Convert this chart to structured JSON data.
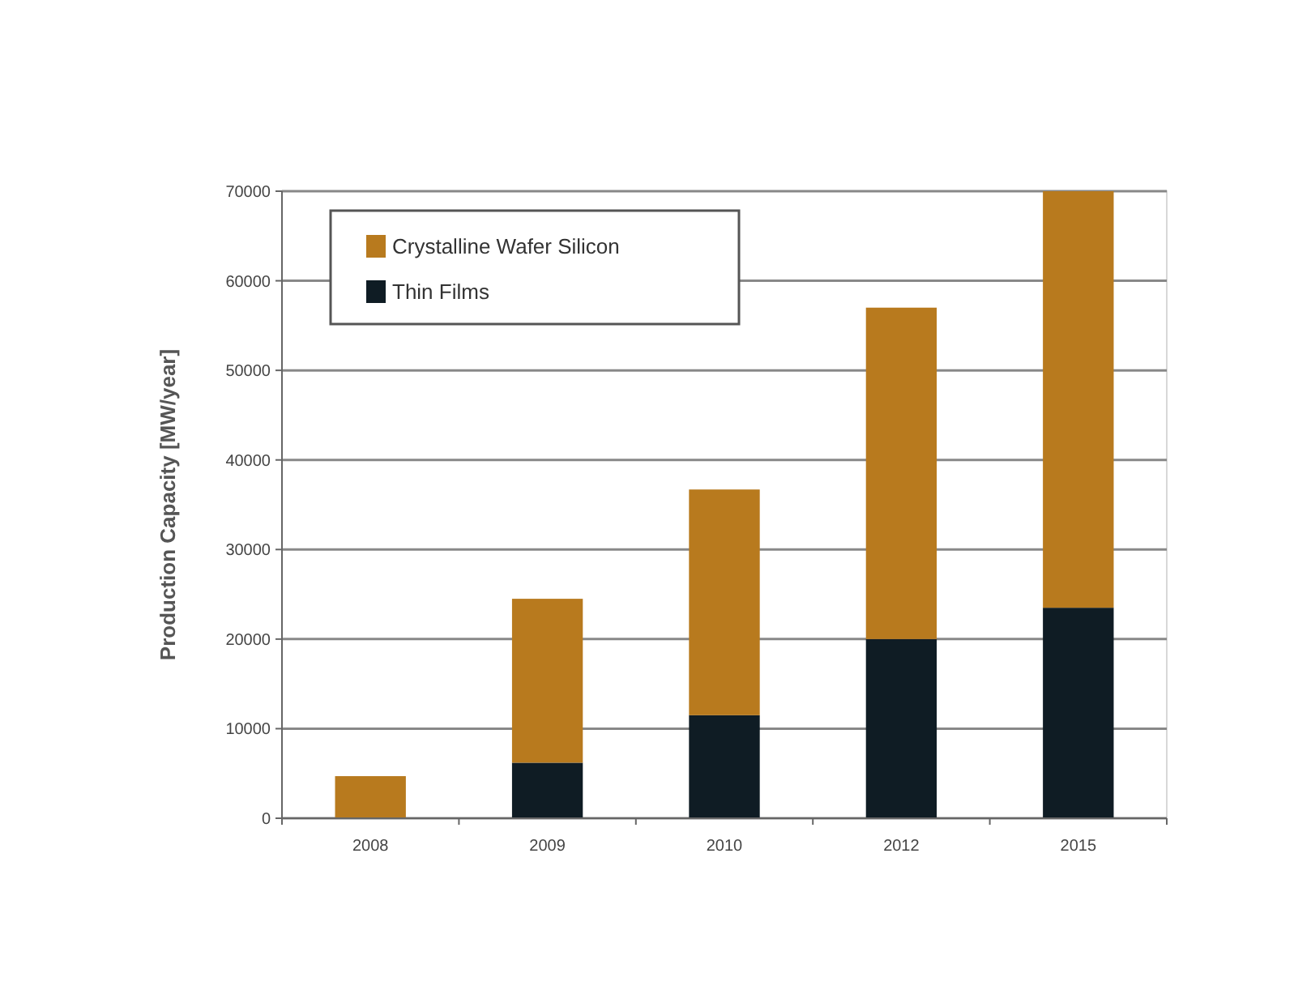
{
  "chart_data": {
    "type": "bar",
    "stacked": true,
    "ylabel": "Production Capacity [MW/year]",
    "categories": [
      "2008",
      "2009",
      "2010",
      "2012",
      "2015"
    ],
    "series": [
      {
        "name": "Thin Films",
        "color": "#0f1c24",
        "values": [
          0,
          6200,
          11500,
          20000,
          23500
        ]
      },
      {
        "name": "Crystalline Wafer Silicon",
        "color": "#b87a1e",
        "values": [
          4700,
          18300,
          25200,
          37000,
          46500
        ]
      }
    ],
    "ylim": [
      0,
      70000
    ],
    "yticks": [
      0,
      10000,
      20000,
      30000,
      40000,
      50000,
      60000,
      70000
    ],
    "grid": "y",
    "legend": "top left"
  }
}
